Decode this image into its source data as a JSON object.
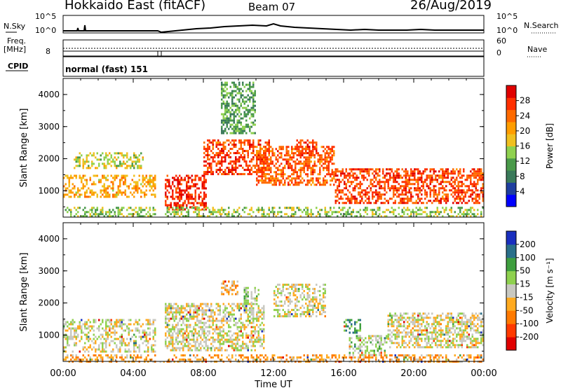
{
  "header": {
    "radar": "Hokkaido East (fitACF)",
    "beam": "Beam 07",
    "date": "26/Aug/2019"
  },
  "status_panels": {
    "nsky_label": "N.Sky",
    "nsky_ticks": [
      "10^5",
      "10^0"
    ],
    "nsearch_label": "N.Search",
    "nsearch_ticks": [
      "10^5",
      "10^0"
    ],
    "freq_label_1": "Freq.",
    "freq_label_2": "[MHz]",
    "freq_tick": "8",
    "nave_label": "Nave",
    "nave_ticks": [
      "60",
      "0"
    ],
    "cpid_label": "CPID",
    "cpid_text": "normal (fast) 151"
  },
  "chart_data": [
    {
      "type": "heatmap",
      "title": "",
      "xlabel": "Time UT",
      "ylabel": "Slant Range [km]",
      "xlim": [
        0,
        24
      ],
      "ylim": [
        180,
        4500
      ],
      "x_ticks": [
        "00:00",
        "04:00",
        "08:00",
        "12:00",
        "16:00",
        "20:00",
        "00:00"
      ],
      "y_ticks": [
        1000,
        2000,
        3000,
        4000
      ],
      "colorbar": {
        "label": "Power [dB]",
        "ticks": [
          "28",
          "24",
          "20",
          "16",
          "12",
          "8",
          "4"
        ],
        "colors": [
          "#0000ff",
          "#1f3f9f",
          "#3a7a5a",
          "#4a9a4a",
          "#8fd14f",
          "#f0c020",
          "#ff9d00",
          "#ff6a00",
          "#ff3000",
          "#e00000"
        ],
        "range": [
          0,
          32
        ]
      },
      "regions": [
        {
          "t0": 0.0,
          "t1": 5.3,
          "r0": 800,
          "r1": 1500,
          "level": 0.62
        },
        {
          "t0": 0.6,
          "t1": 4.6,
          "r0": 1700,
          "r1": 2200,
          "level": 0.5
        },
        {
          "t0": 5.8,
          "t1": 8.2,
          "r0": 400,
          "r1": 1500,
          "level": 0.88
        },
        {
          "t0": 8.0,
          "t1": 11.8,
          "r0": 1500,
          "r1": 2600,
          "level": 0.82
        },
        {
          "t0": 11.0,
          "t1": 15.5,
          "r0": 1200,
          "r1": 2400,
          "level": 0.78
        },
        {
          "t0": 13.2,
          "t1": 14.4,
          "r0": 2100,
          "r1": 2600,
          "level": 0.85
        },
        {
          "t0": 15.5,
          "t1": 24.0,
          "r0": 600,
          "r1": 1700,
          "level": 0.82
        },
        {
          "t0": 0.0,
          "t1": 24.0,
          "r0": 200,
          "r1": 500,
          "level": 0.45
        },
        {
          "t0": 9.0,
          "t1": 11.0,
          "r0": 2800,
          "r1": 4400,
          "level": 0.35
        }
      ]
    },
    {
      "type": "heatmap",
      "title": "",
      "xlabel": "Time UT",
      "ylabel": "Slant Range [km]",
      "xlim": [
        0,
        24
      ],
      "ylim": [
        180,
        4500
      ],
      "x_ticks": [
        "00:00",
        "04:00",
        "08:00",
        "12:00",
        "16:00",
        "20:00",
        "00:00"
      ],
      "y_ticks": [
        1000,
        2000,
        3000,
        4000
      ],
      "colorbar": {
        "label": "Velocity [m s⁻¹]",
        "ticks": [
          "200",
          "100",
          "50",
          "15",
          "-15",
          "-50",
          "-100",
          "-200"
        ],
        "colors": [
          "#e00000",
          "#ff3a00",
          "#ff7a00",
          "#ffaa20",
          "#c8c8c0",
          "#8fd14f",
          "#3f9f3f",
          "#2a6f8a",
          "#1a2fbf"
        ],
        "range": [
          -250,
          250
        ]
      },
      "regions": [
        {
          "t0": 0.0,
          "t1": 5.3,
          "r0": 500,
          "r1": 1500,
          "level": 0.0
        },
        {
          "t0": 5.8,
          "t1": 11.5,
          "r0": 500,
          "r1": 2000,
          "level": 0.0
        },
        {
          "t0": 9.0,
          "t1": 10.0,
          "r0": 2300,
          "r1": 2700,
          "level": -60
        },
        {
          "t0": 10.3,
          "t1": 11.2,
          "r0": 2000,
          "r1": 2500,
          "level": 40
        },
        {
          "t0": 12.0,
          "t1": 15.0,
          "r0": 1600,
          "r1": 2600,
          "level": 0.0
        },
        {
          "t0": 16.0,
          "t1": 17.0,
          "r0": 1100,
          "r1": 1500,
          "level": 120
        },
        {
          "t0": 16.3,
          "t1": 18.5,
          "r0": 400,
          "r1": 1000,
          "level": 30
        },
        {
          "t0": 18.5,
          "t1": 24.0,
          "r0": 600,
          "r1": 1700,
          "level": 0.0
        },
        {
          "t0": 0.0,
          "t1": 24.0,
          "r0": 200,
          "r1": 400,
          "level": -70
        }
      ]
    }
  ]
}
